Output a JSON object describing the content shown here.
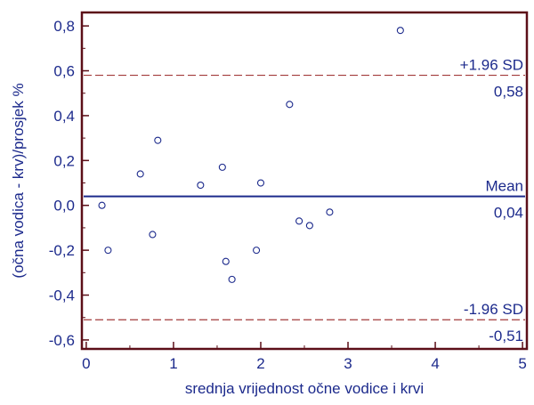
{
  "chart_data": {
    "type": "scatter",
    "title": "",
    "xlabel": "srednja vrijednost očne vodice i krvi",
    "ylabel": "(očna vodica - krv)/prosjek %",
    "xlim": [
      -0.05,
      5.05
    ],
    "ylim": [
      -0.64,
      0.86
    ],
    "x_ticks": [
      0,
      1,
      2,
      3,
      4,
      5
    ],
    "x_tick_labels": [
      "0",
      "1",
      "2",
      "3",
      "4",
      "5"
    ],
    "y_ticks": [
      0.8,
      0.6,
      0.4,
      0.2,
      0.0,
      -0.2,
      -0.4,
      -0.6
    ],
    "y_tick_labels": [
      "0,8",
      "0,6",
      "0,4",
      "0,2",
      "0,0",
      "-0,2",
      "-0,4",
      "-0,6"
    ],
    "grid": false,
    "points": [
      {
        "x": 0.18,
        "y": 0.0
      },
      {
        "x": 0.25,
        "y": -0.2
      },
      {
        "x": 0.62,
        "y": 0.14
      },
      {
        "x": 0.76,
        "y": -0.13
      },
      {
        "x": 0.82,
        "y": 0.29
      },
      {
        "x": 1.31,
        "y": 0.09
      },
      {
        "x": 1.56,
        "y": 0.17
      },
      {
        "x": 1.6,
        "y": -0.25
      },
      {
        "x": 1.67,
        "y": -0.33
      },
      {
        "x": 1.95,
        "y": -0.2
      },
      {
        "x": 2.0,
        "y": 0.1
      },
      {
        "x": 2.33,
        "y": 0.45
      },
      {
        "x": 2.44,
        "y": -0.07
      },
      {
        "x": 2.56,
        "y": -0.09
      },
      {
        "x": 2.79,
        "y": -0.03
      },
      {
        "x": 3.6,
        "y": 0.78
      }
    ],
    "reference_lines": [
      {
        "id": "upper",
        "y": 0.58,
        "style": "dashed",
        "color": "#a23a3a",
        "label_top": "+1.96 SD",
        "label_bottom": "0,58"
      },
      {
        "id": "mean",
        "y": 0.04,
        "style": "solid",
        "color": "#1c2a8c",
        "label_top": "Mean",
        "label_bottom": "0,04"
      },
      {
        "id": "lower",
        "y": -0.51,
        "style": "dashed",
        "color": "#a23a3a",
        "label_top": "-1.96 SD",
        "label_bottom": "-0,51"
      }
    ],
    "colors": {
      "frame": "#5c0f18",
      "text": "#1c2a8c",
      "marker": "#1c2a8c",
      "sd_line": "#a23a3a",
      "mean_line": "#1c2a8c"
    }
  }
}
